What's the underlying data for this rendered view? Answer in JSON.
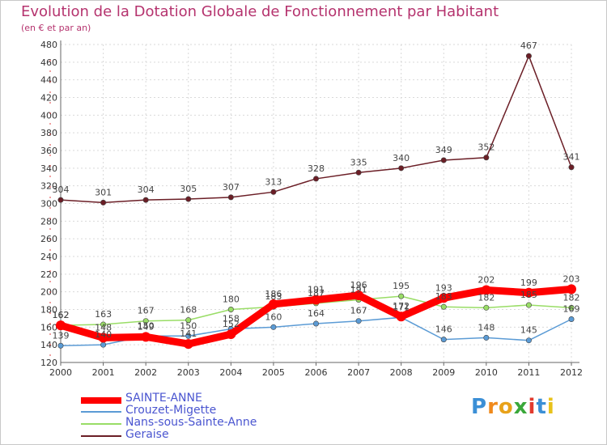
{
  "chart_data": {
    "type": "line",
    "title": "Evolution de la Dotation Globale de Fonctionnement par Habitant",
    "subtitle": "(en € et par an)",
    "xlabel": "",
    "ylabel": "",
    "categories": [
      "2000",
      "2001",
      "2002",
      "2003",
      "2004",
      "2005",
      "2006",
      "2007",
      "2008",
      "2009",
      "2010",
      "2011",
      "2012"
    ],
    "ylim": [
      120,
      480
    ],
    "ytick_step": 20,
    "grid": true,
    "legend_position": "bottom-left",
    "series": [
      {
        "name": "Geraise",
        "color": "#6b1e26",
        "values": [
          304,
          301,
          304,
          305,
          307,
          313,
          328,
          335,
          340,
          349,
          352,
          467,
          341
        ]
      },
      {
        "name": "Nans-sous-Sainte-Anne",
        "color": "#99dd66",
        "values": [
          162,
          163,
          167,
          168,
          180,
          183,
          187,
          191,
          195,
          183,
          182,
          185,
          182
        ]
      },
      {
        "name": "Crouzet-Migette",
        "color": "#5b9bd5",
        "values": [
          139,
          140,
          150,
          150,
          158,
          160,
          164,
          167,
          171,
          146,
          148,
          145,
          169
        ]
      },
      {
        "name": "SAINTE-ANNE",
        "color": "#ff0000",
        "values": [
          162,
          148,
          149,
          141,
          152,
          186,
          191,
          196,
          172,
          193,
          202,
          199,
          203
        ]
      }
    ],
    "legend": [
      "SAINTE-ANNE",
      "Crouzet-Migette",
      "Nans-sous-Sainte-Anne",
      "Geraise"
    ]
  },
  "logo": {
    "letters": [
      "P",
      "r",
      "o",
      "x",
      "i",
      "t",
      "i"
    ],
    "colors": [
      "#3b8fd6",
      "#f08a1c",
      "#e8a21a",
      "#3aa83a",
      "#e23b2e",
      "#3b8fd6",
      "#e8c21a"
    ]
  }
}
